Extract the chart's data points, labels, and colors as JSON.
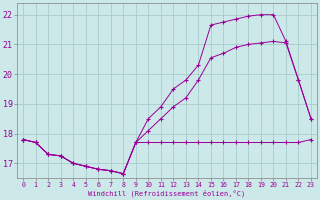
{
  "xlabel": "Windchill (Refroidissement éolien,°C)",
  "bg_color": "#cce8e8",
  "grid_color": "#a8cccc",
  "line_color": "#990099",
  "ylim": [
    16.5,
    22.4
  ],
  "xlim": [
    -0.5,
    23.5
  ],
  "yticks": [
    17,
    18,
    19,
    20,
    21,
    22
  ],
  "xticks": [
    0,
    1,
    2,
    3,
    4,
    5,
    6,
    7,
    8,
    9,
    10,
    11,
    12,
    13,
    14,
    15,
    16,
    17,
    18,
    19,
    20,
    21,
    22,
    23
  ],
  "line1_x": [
    0,
    1,
    2,
    3,
    4,
    5,
    6,
    7,
    8,
    9,
    10,
    11,
    12,
    13,
    14,
    15,
    16,
    17,
    18,
    19,
    20,
    21,
    22,
    23
  ],
  "line1_y": [
    17.8,
    17.7,
    17.3,
    17.25,
    17.0,
    16.9,
    16.8,
    16.75,
    16.65,
    17.7,
    18.5,
    18.9,
    19.5,
    19.8,
    20.3,
    21.65,
    21.75,
    21.85,
    21.95,
    22.0,
    22.0,
    21.1,
    19.8,
    18.5
  ],
  "line2_x": [
    0,
    1,
    2,
    3,
    4,
    5,
    6,
    7,
    8,
    9,
    10,
    11,
    12,
    13,
    14,
    15,
    16,
    17,
    18,
    19,
    20,
    21,
    22,
    23
  ],
  "line2_y": [
    17.8,
    17.7,
    17.3,
    17.25,
    17.0,
    16.9,
    16.8,
    16.75,
    16.65,
    17.7,
    18.1,
    18.5,
    18.9,
    19.2,
    19.8,
    20.55,
    20.7,
    20.9,
    21.0,
    21.05,
    21.1,
    21.05,
    19.8,
    18.5
  ],
  "line3_x": [
    0,
    1,
    2,
    3,
    4,
    5,
    6,
    7,
    8,
    9,
    10,
    11,
    12,
    13,
    14,
    15,
    16,
    17,
    18,
    19,
    20,
    21,
    22,
    23
  ],
  "line3_y": [
    17.8,
    17.7,
    17.3,
    17.25,
    17.0,
    16.9,
    16.8,
    16.75,
    16.65,
    17.7,
    17.7,
    17.7,
    17.7,
    17.7,
    17.7,
    17.7,
    17.7,
    17.7,
    17.7,
    17.7,
    17.7,
    17.7,
    17.7,
    17.8
  ]
}
